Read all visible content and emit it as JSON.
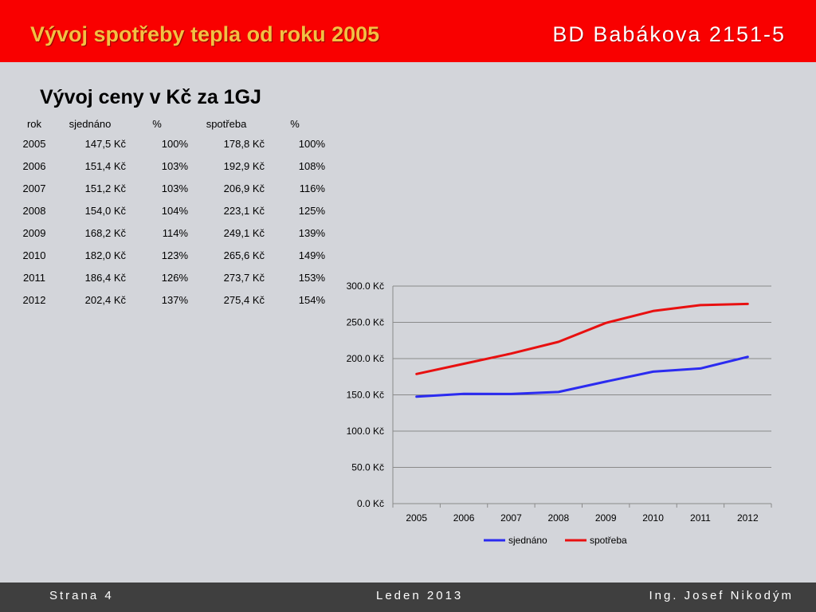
{
  "header": {
    "title": "Vývoj spotřeby tepla od roku 2005",
    "right": "BD Babákova 2151-5",
    "background": "#f90000",
    "title_color": "#f2c043"
  },
  "subtitle": "Vývoj ceny v Kč za 1GJ",
  "table": {
    "headers": [
      "rok",
      "sjednáno",
      "%",
      "spotřeba",
      "%"
    ],
    "rows": [
      [
        "2005",
        "147,5 Kč",
        "100%",
        "178,8 Kč",
        "100%"
      ],
      [
        "2006",
        "151,4 Kč",
        "103%",
        "192,9 Kč",
        "108%"
      ],
      [
        "2007",
        "151,2 Kč",
        "103%",
        "206,9 Kč",
        "116%"
      ],
      [
        "2008",
        "154,0 Kč",
        "104%",
        "223,1 Kč",
        "125%"
      ],
      [
        "2009",
        "168,2 Kč",
        "114%",
        "249,1 Kč",
        "139%"
      ],
      [
        "2010",
        "182,0 Kč",
        "123%",
        "265,6 Kč",
        "149%"
      ],
      [
        "2011",
        "186,4 Kč",
        "126%",
        "273,7 Kč",
        "153%"
      ],
      [
        "2012",
        "202,4 Kč",
        "137%",
        "275,4 Kč",
        "154%"
      ]
    ]
  },
  "chart_data": {
    "type": "line",
    "title": "",
    "xlabel": "",
    "ylabel": "",
    "categories": [
      "2005",
      "2006",
      "2007",
      "2008",
      "2009",
      "2010",
      "2011",
      "2012"
    ],
    "series": [
      {
        "name": "sjednáno",
        "color": "#2b2bf0",
        "values": [
          147.5,
          151.4,
          151.2,
          154.0,
          168.2,
          182.0,
          186.4,
          202.4
        ]
      },
      {
        "name": "spotřeba",
        "color": "#e81010",
        "values": [
          178.8,
          192.9,
          206.9,
          223.1,
          249.1,
          265.6,
          273.7,
          275.4
        ]
      }
    ],
    "ylim": [
      0,
      300
    ],
    "yticks": [
      0,
      50,
      100,
      150,
      200,
      250,
      300
    ],
    "ytick_labels": [
      "0.0 Kč",
      "50.0 Kč",
      "100.0 Kč",
      "150.0 Kč",
      "200.0 Kč",
      "250.0 Kč",
      "300.0 Kč"
    ],
    "grid": true,
    "legend": "bottom"
  },
  "footer": {
    "page": "Strana 4",
    "date": "Leden 2013",
    "author": "Ing. Josef Nikodým"
  }
}
